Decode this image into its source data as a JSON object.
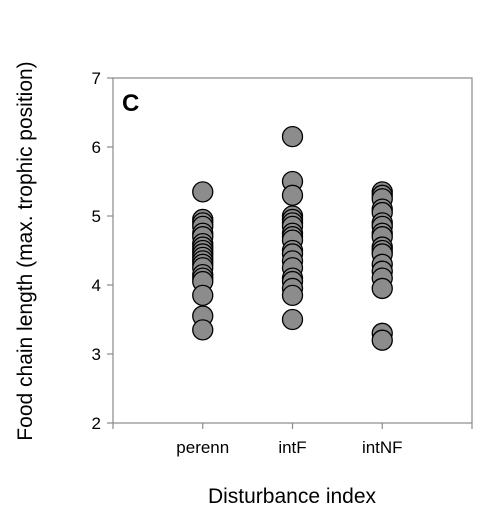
{
  "chart_data": {
    "type": "scatter",
    "panel_label": "C",
    "xlabel": "Disturbance index",
    "ylabel": "Food chain length (max. trophic position)",
    "ylim": [
      2,
      7
    ],
    "yticks": [
      2,
      3,
      4,
      5,
      6,
      7
    ],
    "categories": [
      "perenn",
      "intF",
      "intNF"
    ],
    "grid": false,
    "marker_color": "#8c8c8c",
    "marker_edge_color": "#000000",
    "series": [
      {
        "category": "perenn",
        "values": [
          5.35,
          4.95,
          4.9,
          4.85,
          4.75,
          4.7,
          4.6,
          4.55,
          4.5,
          4.45,
          4.4,
          4.35,
          4.3,
          4.25,
          4.15,
          4.1,
          4.05,
          3.85,
          3.55,
          3.35
        ]
      },
      {
        "category": "intF",
        "values": [
          6.15,
          5.5,
          5.3,
          5.0,
          4.95,
          4.9,
          4.85,
          4.75,
          4.7,
          4.65,
          4.5,
          4.45,
          4.35,
          4.25,
          4.1,
          4.05,
          3.95,
          3.85,
          3.5
        ]
      },
      {
        "category": "intNF",
        "values": [
          5.35,
          5.3,
          5.25,
          5.1,
          5.05,
          4.9,
          4.85,
          4.75,
          4.7,
          4.55,
          4.5,
          4.45,
          4.3,
          4.2,
          4.1,
          3.95,
          3.3,
          3.2
        ]
      }
    ]
  }
}
